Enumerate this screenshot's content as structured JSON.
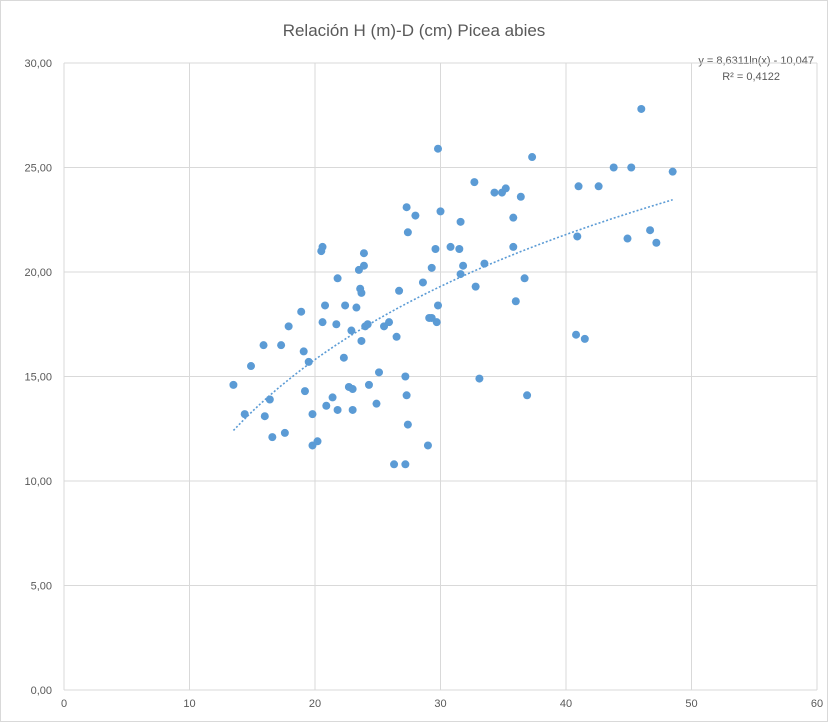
{
  "chart_data": {
    "type": "scatter",
    "title": "Relación H (m)-D (cm) Picea abies",
    "xlabel": "",
    "ylabel": "",
    "xlim": [
      0,
      60
    ],
    "ylim": [
      0,
      30
    ],
    "x_ticks": [
      "0",
      "10",
      "20",
      "30",
      "40",
      "50",
      "60"
    ],
    "y_ticks": [
      "0,00",
      "5,00",
      "10,00",
      "15,00",
      "20,00",
      "25,00",
      "30,00"
    ],
    "grid": true,
    "series": [
      {
        "color": "#5b9bd5",
        "points": [
          [
            13.5,
            14.6
          ],
          [
            14.4,
            13.2
          ],
          [
            14.9,
            15.5
          ],
          [
            15.9,
            16.5
          ],
          [
            16.0,
            13.1
          ],
          [
            16.4,
            13.9
          ],
          [
            16.6,
            12.1
          ],
          [
            17.3,
            16.5
          ],
          [
            17.6,
            12.3
          ],
          [
            17.9,
            17.4
          ],
          [
            18.9,
            18.1
          ],
          [
            19.1,
            16.2
          ],
          [
            19.2,
            14.3
          ],
          [
            19.5,
            15.7
          ],
          [
            19.8,
            13.2
          ],
          [
            19.8,
            11.7
          ],
          [
            20.2,
            11.9
          ],
          [
            20.5,
            21.0
          ],
          [
            20.6,
            21.2
          ],
          [
            20.6,
            17.6
          ],
          [
            20.8,
            18.4
          ],
          [
            20.9,
            13.6
          ],
          [
            21.4,
            14.0
          ],
          [
            21.7,
            17.5
          ],
          [
            21.8,
            19.7
          ],
          [
            21.8,
            13.4
          ],
          [
            22.3,
            15.9
          ],
          [
            22.4,
            18.4
          ],
          [
            22.7,
            14.5
          ],
          [
            22.9,
            17.2
          ],
          [
            23.0,
            14.4
          ],
          [
            23.0,
            13.4
          ],
          [
            23.3,
            18.3
          ],
          [
            23.5,
            20.1
          ],
          [
            23.6,
            19.2
          ],
          [
            23.7,
            19.0
          ],
          [
            23.7,
            16.7
          ],
          [
            23.9,
            20.3
          ],
          [
            23.9,
            20.9
          ],
          [
            24.0,
            17.4
          ],
          [
            24.2,
            17.5
          ],
          [
            24.3,
            14.6
          ],
          [
            24.9,
            13.7
          ],
          [
            25.1,
            15.2
          ],
          [
            25.5,
            17.4
          ],
          [
            25.9,
            17.6
          ],
          [
            26.3,
            10.8
          ],
          [
            26.5,
            16.9
          ],
          [
            26.7,
            19.1
          ],
          [
            27.2,
            15.0
          ],
          [
            27.2,
            10.8
          ],
          [
            27.3,
            23.1
          ],
          [
            27.3,
            14.1
          ],
          [
            27.4,
            21.9
          ],
          [
            27.4,
            12.7
          ],
          [
            28.0,
            22.7
          ],
          [
            28.6,
            19.5
          ],
          [
            29.0,
            11.7
          ],
          [
            29.1,
            17.8
          ],
          [
            29.3,
            20.2
          ],
          [
            29.3,
            17.8
          ],
          [
            29.6,
            21.1
          ],
          [
            29.7,
            17.6
          ],
          [
            29.8,
            18.4
          ],
          [
            29.8,
            25.9
          ],
          [
            30.0,
            22.9
          ],
          [
            30.8,
            21.2
          ],
          [
            31.5,
            21.1
          ],
          [
            31.6,
            22.4
          ],
          [
            31.6,
            19.9
          ],
          [
            31.8,
            20.3
          ],
          [
            32.7,
            24.3
          ],
          [
            32.8,
            19.3
          ],
          [
            33.1,
            14.9
          ],
          [
            33.5,
            20.4
          ],
          [
            34.3,
            23.8
          ],
          [
            34.9,
            23.8
          ],
          [
            35.2,
            24.0
          ],
          [
            35.8,
            22.6
          ],
          [
            35.8,
            21.2
          ],
          [
            36.0,
            18.6
          ],
          [
            36.4,
            23.6
          ],
          [
            36.7,
            19.7
          ],
          [
            36.9,
            14.1
          ],
          [
            37.3,
            25.5
          ],
          [
            40.8,
            17.0
          ],
          [
            40.9,
            21.7
          ],
          [
            41.0,
            24.1
          ],
          [
            41.5,
            16.8
          ],
          [
            42.6,
            24.1
          ],
          [
            43.8,
            25.0
          ],
          [
            44.9,
            21.6
          ],
          [
            45.2,
            25.0
          ],
          [
            46.0,
            27.8
          ],
          [
            46.7,
            22.0
          ],
          [
            47.2,
            21.4
          ],
          [
            48.5,
            24.8
          ]
        ]
      }
    ],
    "trendline": {
      "type": "logarithmic",
      "a": 8.6311,
      "b": -10.047,
      "x_range": [
        13.5,
        48.5
      ],
      "equation": "y = 8,6311ln(x) - 10,047",
      "r2": "R² = 0,4122"
    }
  }
}
